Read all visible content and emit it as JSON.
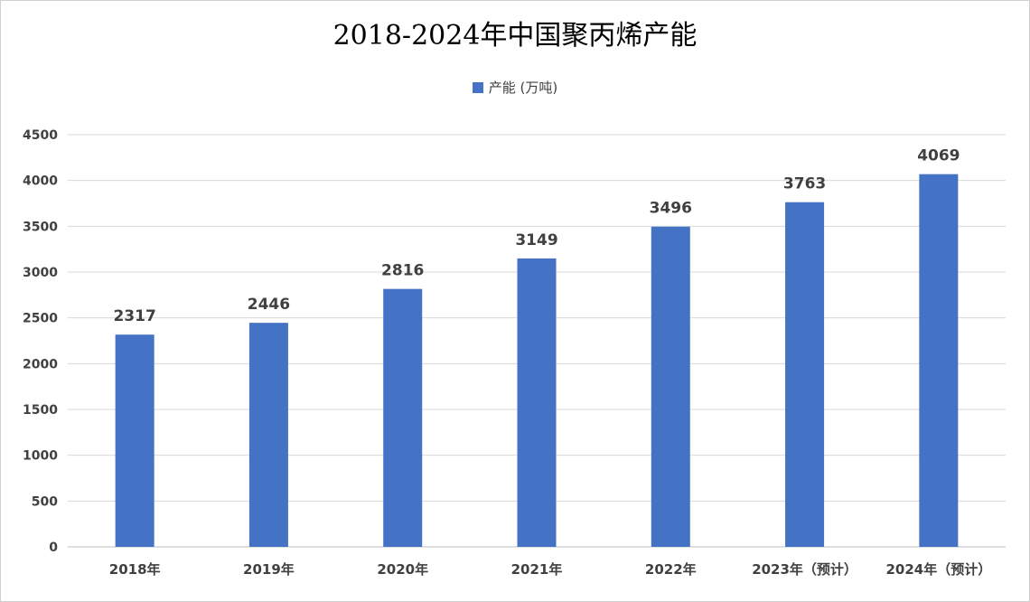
{
  "chart_data": {
    "type": "bar",
    "title": "2018-2024年中国聚丙烯产能",
    "categories": [
      "2018年",
      "2019年",
      "2020年",
      "2021年",
      "2022年",
      "2023年（预计）",
      "2024年（预计）"
    ],
    "series": [
      {
        "name": "产能 (万吨)",
        "values": [
          2317,
          2446,
          2816,
          3149,
          3496,
          3763,
          4069
        ]
      }
    ],
    "y_ticks": [
      "0",
      "500",
      "1000",
      "1500",
      "2000",
      "2500",
      "3000",
      "3500",
      "4000",
      "4500"
    ],
    "ylim": [
      0,
      4500
    ],
    "grid": true,
    "legend_position": "top",
    "bar_color": "#4472c4"
  }
}
